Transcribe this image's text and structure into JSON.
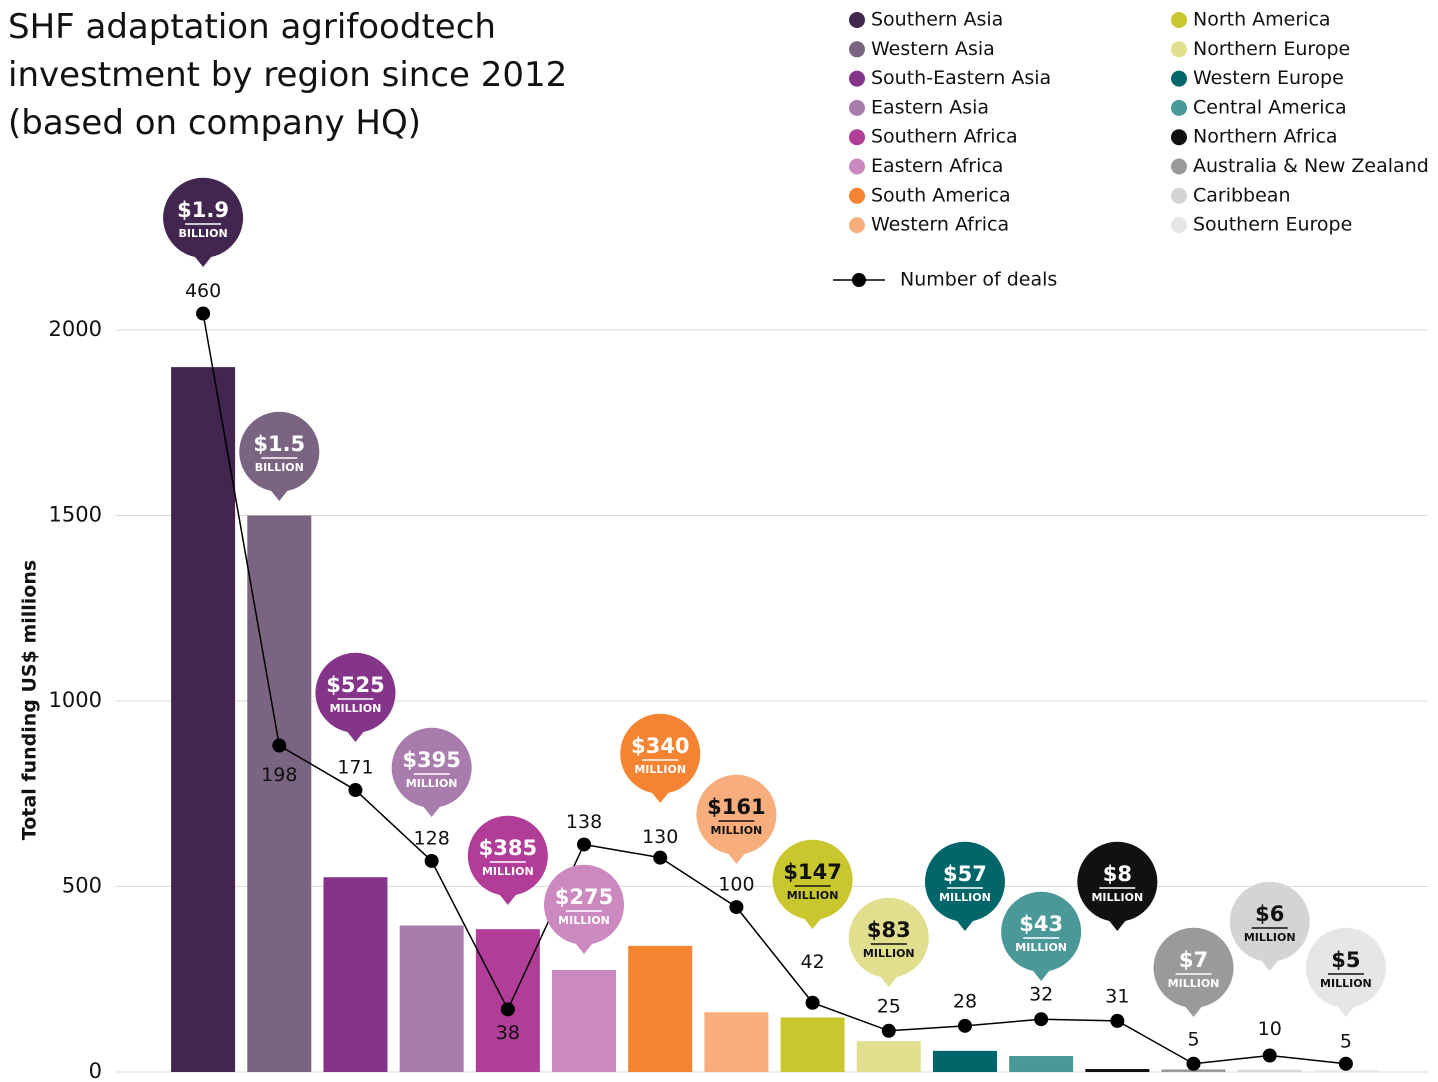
{
  "chart_data": {
    "type": "bar",
    "title": [
      "SHF adaptation agrifoodtech",
      "investment by region since 2012",
      "(based on company HQ)"
    ],
    "y_axis_label": "Total funding US$ millions",
    "categories": [
      "Southern Asia",
      "Western Asia",
      "South-Eastern Asia",
      "Eastern Asia",
      "Southern Africa",
      "Eastern Africa",
      "South America",
      "Western Africa",
      "North America",
      "Northern Europe",
      "Western Europe",
      "Central America",
      "Northern Africa",
      "Australia & New Zealand",
      "Caribbean",
      "Southern Europe"
    ],
    "colors": [
      "#43264f",
      "#7a6482",
      "#84358a",
      "#a97cae",
      "#b13d98",
      "#cb89bf",
      "#f48432",
      "#f7ae7c",
      "#c9c72d",
      "#e1de8e",
      "#00666a",
      "#4b9898",
      "#111111",
      "#9a9a9c",
      "#d4d4d5",
      "#e6e6e7"
    ],
    "series": [
      {
        "values": [
          1900,
          1500,
          525,
          395,
          385,
          275,
          340,
          161,
          147,
          83,
          57,
          43,
          8,
          7,
          6,
          5
        ],
        "value_labels": [
          "$1.9 BILLION",
          "$1.5 BILLION",
          "$525 MILLION",
          "$395 MILLION",
          "$385 MILLION",
          "$275 MILLION",
          "$340 MILLION",
          "$161 MILLION",
          "$147 MILLION",
          "$83 MILLION",
          "$57 MILLION",
          "$43 MILLION",
          "$8 MILLION",
          "$7 MILLION",
          "$6 MILLION",
          "$5 MILLION"
        ]
      },
      {
        "name": "Number of deals",
        "type": "line",
        "axis": "y2",
        "color": "#000000",
        "values": [
          460,
          198,
          171,
          128,
          38,
          138,
          130,
          100,
          42,
          25,
          28,
          32,
          31,
          5,
          10,
          5
        ]
      }
    ],
    "ylim": [
      0,
      2000
    ],
    "yticks": [
      0,
      500,
      1000,
      1500,
      2000
    ],
    "y2lim": [
      0,
      450
    ],
    "grid": true
  }
}
